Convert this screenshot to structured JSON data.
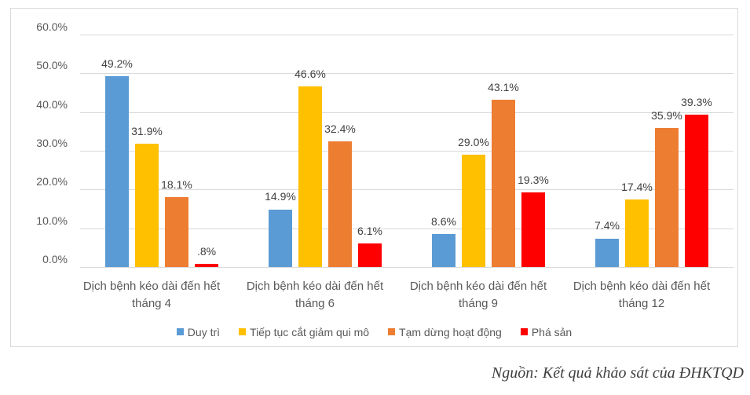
{
  "chart_data": {
    "type": "bar",
    "title": "",
    "xlabel": "",
    "ylabel": "",
    "ylim": [
      0,
      60
    ],
    "yticks": [
      "0.0%",
      "10.0%",
      "20.0%",
      "30.0%",
      "40.0%",
      "50.0%",
      "60.0%"
    ],
    "grid": true,
    "legend_position": "bottom",
    "categories": [
      "Dịch bệnh kéo dài đến hết tháng 4",
      "Dịch bệnh kéo dài đến hết tháng 6",
      "Dịch bệnh kéo dài đến hết tháng 9",
      "Dịch bệnh kéo dài đến hết tháng 12"
    ],
    "series": [
      {
        "name": "Duy trì",
        "color": "#5b9bd5",
        "values": [
          49.2,
          14.9,
          8.6,
          7.4
        ],
        "labels": [
          "49.2%",
          "14.9%",
          "8.6%",
          "7.4%"
        ]
      },
      {
        "name": "Tiếp tục cắt giảm qui mô",
        "color": "#ffc000",
        "values": [
          31.9,
          46.6,
          29.0,
          17.4
        ],
        "labels": [
          "31.9%",
          "46.6%",
          "29.0%",
          "17.4%"
        ]
      },
      {
        "name": "Tạm dừng hoạt động",
        "color": "#ed7d31",
        "values": [
          18.1,
          32.4,
          43.1,
          35.9
        ],
        "labels": [
          "18.1%",
          "32.4%",
          "43.1%",
          "35.9%"
        ]
      },
      {
        "name": "Phá sản",
        "color": "#ff0000",
        "values": [
          0.8,
          6.1,
          19.3,
          39.3
        ],
        "labels": [
          ".8%",
          "6.1%",
          "19.3%",
          "39.3%"
        ]
      }
    ]
  },
  "categories_display": [
    {
      "line1": "Dịch bệnh kéo dài đến hết",
      "line2": "tháng 4"
    },
    {
      "line1": "Dịch bệnh kéo dài đến hết",
      "line2": "tháng 6"
    },
    {
      "line1": "Dịch bệnh kéo dài đến hết",
      "line2": "tháng 9"
    },
    {
      "line1": "Dịch bệnh kéo dài đến hết",
      "line2": "tháng 12"
    }
  ],
  "source": "Nguồn: Kết quả khảo sát của ĐHKTQD"
}
